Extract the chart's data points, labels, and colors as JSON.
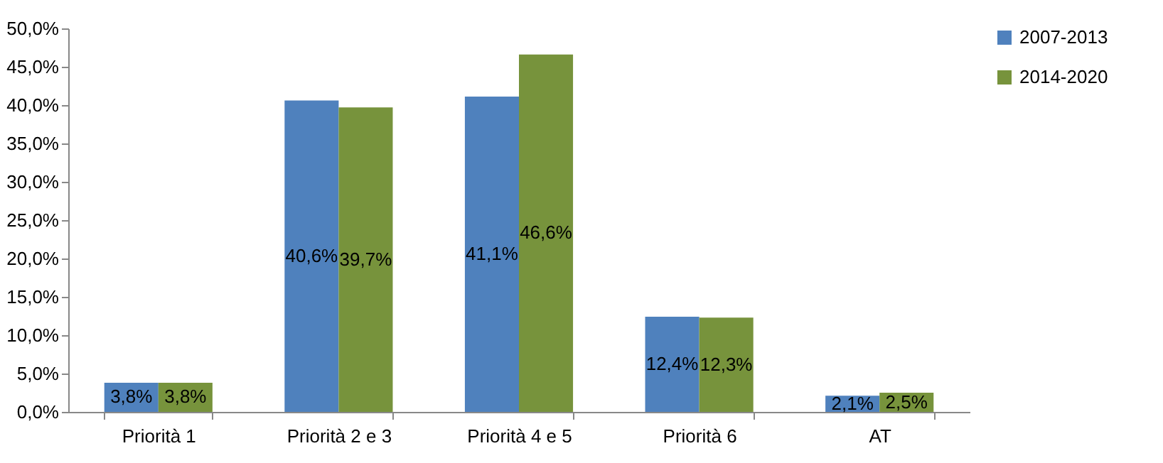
{
  "chart_data": {
    "type": "bar",
    "categories": [
      "Priorità 1",
      "Priorità 2 e 3",
      "Priorità 4 e 5",
      "Priorità 6",
      "AT"
    ],
    "series": [
      {
        "name": "2007-2013",
        "color": "#4f81bd",
        "values": [
          3.8,
          40.6,
          41.1,
          12.4,
          2.1
        ],
        "value_labels": [
          "3,8%",
          "40,6%",
          "41,1%",
          "12,4%",
          "2,1%"
        ]
      },
      {
        "name": "2014-2020",
        "color": "#77933c",
        "values": [
          3.8,
          39.7,
          46.6,
          12.3,
          2.5
        ],
        "value_labels": [
          "3,8%",
          "39,7%",
          "46,6%",
          "12,3%",
          "2,5%"
        ]
      }
    ],
    "ylim": [
      0,
      50
    ],
    "yticks": [
      {
        "value": 0,
        "label": "0,0%"
      },
      {
        "value": 5,
        "label": "5,0%"
      },
      {
        "value": 10,
        "label": "10,0%"
      },
      {
        "value": 15,
        "label": "15,0%"
      },
      {
        "value": 20,
        "label": "20,0%"
      },
      {
        "value": 25,
        "label": "25,0%"
      },
      {
        "value": 30,
        "label": "30,0%"
      },
      {
        "value": 35,
        "label": "35,0%"
      },
      {
        "value": 40,
        "label": "40,0%"
      },
      {
        "value": 45,
        "label": "45,0%"
      },
      {
        "value": 50,
        "label": "50,0%"
      }
    ],
    "legend": "right"
  }
}
